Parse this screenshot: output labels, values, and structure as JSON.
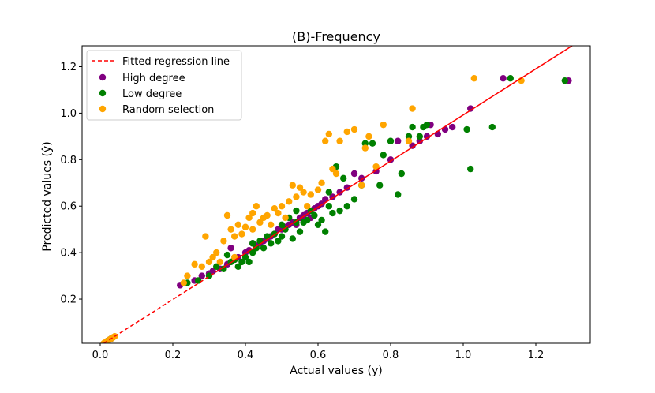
{
  "chart_data": {
    "type": "scatter",
    "title": "(B)-Frequency",
    "xlabel": "Actual values (y)",
    "ylabel": "Predicted values (ŷ)",
    "xlim": [
      -0.05,
      1.35
    ],
    "ylim": [
      0.01,
      1.29
    ],
    "xticks": [
      0.0,
      0.2,
      0.4,
      0.6,
      0.8,
      1.0,
      1.2
    ],
    "xtick_labels": [
      "0.0",
      "0.2",
      "0.4",
      "0.6",
      "0.8",
      "1.0",
      "1.2"
    ],
    "yticks": [
      0.2,
      0.4,
      0.6,
      0.8,
      1.0,
      1.2
    ],
    "ytick_labels": [
      "0.2",
      "0.4",
      "0.6",
      "0.8",
      "1.0",
      "1.2"
    ],
    "grid": false,
    "legend_position": "top-left",
    "regression_line": {
      "name": "Fitted regression line",
      "color": "#ff0000",
      "x": [
        0.01,
        1.3
      ],
      "y": [
        0.01,
        1.29
      ],
      "dashed_until_x": 0.32
    },
    "series": [
      {
        "name": "High degree",
        "color": "#800080",
        "x": [
          0.02,
          0.025,
          0.03,
          0.22,
          0.26,
          0.28,
          0.3,
          0.31,
          0.33,
          0.35,
          0.36,
          0.37,
          0.38,
          0.4,
          0.41,
          0.42,
          0.43,
          0.44,
          0.45,
          0.46,
          0.47,
          0.48,
          0.49,
          0.5,
          0.51,
          0.52,
          0.53,
          0.54,
          0.55,
          0.56,
          0.57,
          0.58,
          0.59,
          0.6,
          0.61,
          0.62,
          0.64,
          0.66,
          0.68,
          0.7,
          0.72,
          0.76,
          0.8,
          0.82,
          0.86,
          0.88,
          0.9,
          0.91,
          0.93,
          0.95,
          0.97,
          1.02,
          1.11,
          1.29
        ],
        "y": [
          0.02,
          0.025,
          0.03,
          0.26,
          0.28,
          0.3,
          0.31,
          0.32,
          0.33,
          0.35,
          0.42,
          0.37,
          0.38,
          0.4,
          0.41,
          0.44,
          0.43,
          0.44,
          0.45,
          0.46,
          0.47,
          0.48,
          0.5,
          0.5,
          0.51,
          0.52,
          0.53,
          0.52,
          0.55,
          0.56,
          0.57,
          0.55,
          0.59,
          0.6,
          0.61,
          0.63,
          0.64,
          0.66,
          0.68,
          0.74,
          0.72,
          0.75,
          0.8,
          0.88,
          0.86,
          0.88,
          0.9,
          0.95,
          0.91,
          0.93,
          0.94,
          1.02,
          1.15,
          1.14
        ]
      },
      {
        "name": "Low degree",
        "color": "#008000",
        "x": [
          0.02,
          0.03,
          0.24,
          0.27,
          0.3,
          0.32,
          0.34,
          0.35,
          0.36,
          0.37,
          0.38,
          0.39,
          0.4,
          0.41,
          0.42,
          0.42,
          0.43,
          0.44,
          0.45,
          0.46,
          0.47,
          0.48,
          0.49,
          0.5,
          0.5,
          0.51,
          0.52,
          0.53,
          0.54,
          0.54,
          0.55,
          0.56,
          0.57,
          0.58,
          0.59,
          0.6,
          0.61,
          0.62,
          0.63,
          0.63,
          0.64,
          0.65,
          0.66,
          0.67,
          0.68,
          0.7,
          0.72,
          0.73,
          0.75,
          0.77,
          0.78,
          0.8,
          0.82,
          0.83,
          0.85,
          0.86,
          0.88,
          0.89,
          0.9,
          1.01,
          1.02,
          1.08,
          1.13,
          1.28
        ],
        "y": [
          0.02,
          0.03,
          0.27,
          0.28,
          0.3,
          0.34,
          0.33,
          0.39,
          0.36,
          0.37,
          0.34,
          0.36,
          0.38,
          0.36,
          0.4,
          0.44,
          0.42,
          0.45,
          0.42,
          0.47,
          0.44,
          0.48,
          0.45,
          0.52,
          0.47,
          0.5,
          0.55,
          0.46,
          0.53,
          0.58,
          0.49,
          0.53,
          0.54,
          0.58,
          0.56,
          0.52,
          0.54,
          0.49,
          0.6,
          0.66,
          0.57,
          0.77,
          0.58,
          0.72,
          0.6,
          0.63,
          0.69,
          0.87,
          0.87,
          0.69,
          0.82,
          0.88,
          0.65,
          0.74,
          0.9,
          0.94,
          0.9,
          0.94,
          0.95,
          0.93,
          0.76,
          0.94,
          1.15,
          1.14
        ]
      },
      {
        "name": "Random selection",
        "color": "#ffa500",
        "x": [
          0.01,
          0.015,
          0.02,
          0.025,
          0.03,
          0.035,
          0.04,
          0.23,
          0.24,
          0.26,
          0.28,
          0.29,
          0.3,
          0.31,
          0.32,
          0.33,
          0.34,
          0.35,
          0.36,
          0.37,
          0.37,
          0.38,
          0.39,
          0.4,
          0.41,
          0.42,
          0.42,
          0.43,
          0.44,
          0.45,
          0.46,
          0.47,
          0.48,
          0.49,
          0.5,
          0.51,
          0.52,
          0.53,
          0.54,
          0.55,
          0.56,
          0.57,
          0.58,
          0.6,
          0.61,
          0.62,
          0.63,
          0.64,
          0.65,
          0.66,
          0.68,
          0.7,
          0.72,
          0.73,
          0.74,
          0.76,
          0.78,
          0.85,
          0.86,
          1.03,
          1.16
        ],
        "y": [
          0.01,
          0.015,
          0.02,
          0.025,
          0.03,
          0.035,
          0.04,
          0.27,
          0.3,
          0.35,
          0.34,
          0.47,
          0.36,
          0.38,
          0.4,
          0.36,
          0.45,
          0.56,
          0.5,
          0.47,
          0.38,
          0.52,
          0.48,
          0.51,
          0.55,
          0.5,
          0.57,
          0.6,
          0.53,
          0.55,
          0.56,
          0.52,
          0.59,
          0.57,
          0.6,
          0.55,
          0.62,
          0.69,
          0.64,
          0.68,
          0.66,
          0.6,
          0.65,
          0.67,
          0.7,
          0.88,
          0.91,
          0.76,
          0.74,
          0.88,
          0.92,
          0.93,
          0.69,
          0.85,
          0.9,
          0.77,
          0.95,
          0.88,
          1.02,
          1.15,
          1.14
        ]
      }
    ]
  }
}
